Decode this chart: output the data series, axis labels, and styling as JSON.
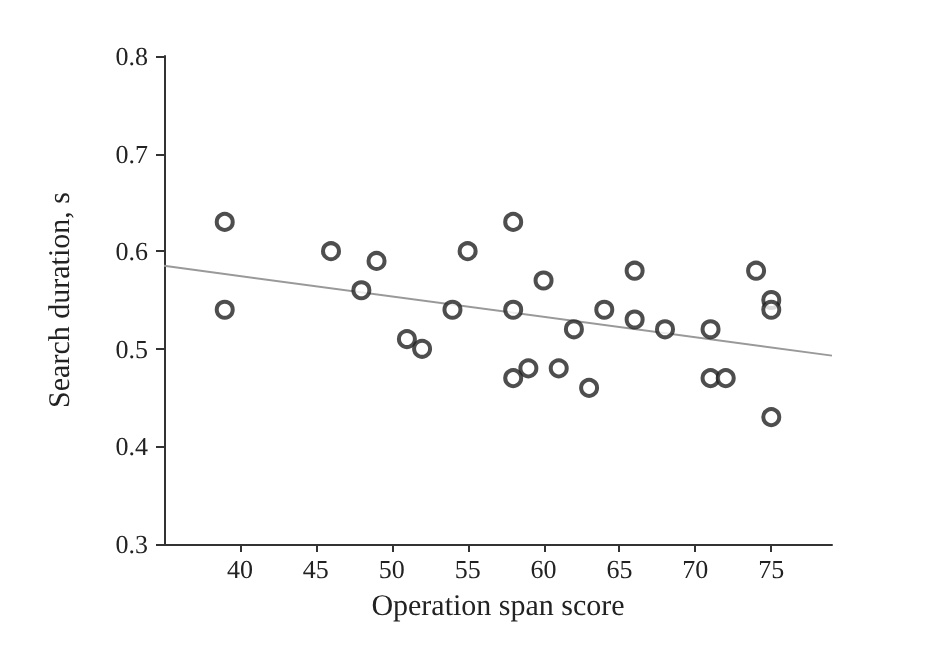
{
  "chart_data": {
    "type": "scatter",
    "xlabel": "Operation span score",
    "ylabel": "Search duration, s",
    "xlim": [
      35,
      79
    ],
    "xticks": [
      40,
      45,
      50,
      55,
      60,
      65,
      70,
      75
    ],
    "ylim": [
      0.3,
      0.8
    ],
    "yticks": [
      0.3,
      0.4,
      0.5,
      0.6,
      0.7,
      0.8
    ],
    "grid": false,
    "series": [
      {
        "marker": "circle",
        "color": "#222222",
        "x": [
          39,
          39,
          46,
          48,
          49,
          51,
          52,
          54,
          55,
          58,
          58,
          58,
          59,
          60,
          61,
          62,
          63,
          64,
          66,
          66,
          68,
          71,
          71,
          72,
          74,
          75,
          75,
          75
        ],
        "values": [
          0.63,
          0.54,
          0.6,
          0.56,
          0.59,
          0.51,
          0.5,
          0.54,
          0.6,
          0.63,
          0.54,
          0.47,
          0.48,
          0.57,
          0.48,
          0.52,
          0.46,
          0.54,
          0.58,
          0.53,
          0.52,
          0.52,
          0.47,
          0.47,
          0.58,
          0.55,
          0.54,
          0.43
        ]
      },
      {
        "type": "line",
        "color": "#999999",
        "line_style": "solid",
        "x": [
          35,
          79
        ],
        "values": [
          0.585,
          0.493
        ]
      }
    ]
  }
}
